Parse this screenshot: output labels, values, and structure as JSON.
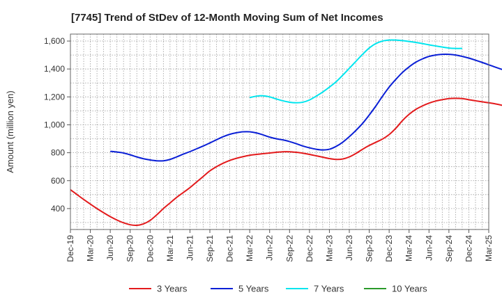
{
  "chart_data": {
    "type": "line",
    "title": "[7745]  Trend of StDev of 12-Month Moving Sum of Net Incomes",
    "xlabel": "",
    "ylabel": "Amount (million yen)",
    "ylim": [
      250,
      1650
    ],
    "yticks": [
      400,
      600,
      800,
      1000,
      1200,
      1400,
      1600
    ],
    "ytick_labels": [
      "400",
      "600",
      "800",
      "1,000",
      "1,200",
      "1,400",
      "1,600"
    ],
    "x_tick_labels": [
      "Dec-19",
      "Mar-20",
      "Jun-20",
      "Sep-20",
      "Dec-20",
      "Mar-21",
      "Jun-21",
      "Sep-21",
      "Dec-21",
      "Mar-22",
      "Jun-22",
      "Sep-22",
      "Dec-22",
      "Mar-23",
      "Jun-23",
      "Sep-23",
      "Dec-23",
      "Mar-24",
      "Jun-24",
      "Sep-24",
      "Dec-24",
      "Mar-25"
    ],
    "x_start": "Dec-19",
    "grid": true,
    "legend_position": "bottom",
    "series": [
      {
        "name": "3 Years",
        "color": "#e31a1c",
        "start_index": 0,
        "values": [
          535,
          500,
          465,
          432,
          400,
          370,
          342,
          318,
          298,
          284,
          280,
          290,
          315,
          355,
          400,
          440,
          480,
          515,
          550,
          590,
          630,
          670,
          700,
          725,
          745,
          760,
          772,
          782,
          788,
          793,
          798,
          803,
          807,
          807,
          803,
          797,
          788,
          778,
          768,
          758,
          752,
          755,
          770,
          795,
          825,
          852,
          875,
          898,
          930,
          975,
          1030,
          1075,
          1110,
          1135,
          1155,
          1170,
          1180,
          1188,
          1190,
          1188,
          1180,
          1172,
          1165,
          1158,
          1150,
          1140,
          1128,
          1112,
          1095,
          1075,
          1055
        ]
      },
      {
        "name": "5 Years",
        "color": "#0a1fd6",
        "start_index": 6,
        "values": [
          810,
          805,
          798,
          785,
          770,
          757,
          748,
          742,
          742,
          752,
          770,
          790,
          808,
          828,
          848,
          870,
          893,
          915,
          932,
          943,
          950,
          950,
          942,
          928,
          912,
          900,
          892,
          880,
          865,
          848,
          835,
          825,
          820,
          825,
          845,
          875,
          915,
          960,
          1010,
          1070,
          1135,
          1205,
          1270,
          1325,
          1375,
          1415,
          1448,
          1472,
          1490,
          1500,
          1505,
          1505,
          1500,
          1490,
          1478,
          1463,
          1447,
          1430,
          1413,
          1397,
          1383
        ]
      },
      {
        "name": "7 Years",
        "color": "#00e5ee",
        "start_index": 27,
        "values": [
          1195,
          1205,
          1208,
          1200,
          1185,
          1172,
          1162,
          1158,
          1162,
          1178,
          1205,
          1235,
          1270,
          1308,
          1355,
          1405,
          1455,
          1505,
          1550,
          1582,
          1600,
          1607,
          1607,
          1603,
          1597,
          1590,
          1582,
          1573,
          1565,
          1557,
          1550,
          1547,
          1547
        ]
      },
      {
        "name": "10 Years",
        "color": "#2a9a2a",
        "start_index": 0,
        "values": []
      }
    ]
  }
}
